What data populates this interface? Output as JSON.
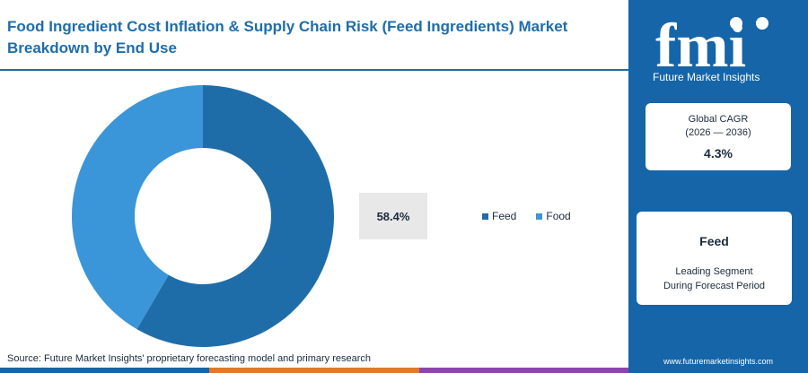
{
  "title": "Food Ingredient Cost Inflation & Supply Chain Risk (Feed Ingredients) Market Breakdown by End Use",
  "chart_data": {
    "type": "pie",
    "subtype": "donut",
    "categories": [
      "Feed",
      "Food"
    ],
    "values": [
      58.4,
      41.6
    ],
    "colors": [
      "#1f6da8",
      "#3a96d8"
    ],
    "highlight_label": "58.4%",
    "legend_position": "right"
  },
  "source": "Source: Future Market Insights' proprietary forecasting model and primary research",
  "bottom_bar_colors": [
    "#1565a8",
    "#e07a2a",
    "#8e44ad"
  ],
  "sidebar": {
    "logo_text": "fmi",
    "logo_subtitle": "Future Market Insights",
    "cagr_label": "Global CAGR",
    "cagr_period": "(2026 — 2036)",
    "cagr_value": "4.3%",
    "segment_name": "Feed",
    "segment_line1": "Leading Segment",
    "segment_line2": "During Forecast Period",
    "website": "www.futuremarketinsights.com"
  }
}
